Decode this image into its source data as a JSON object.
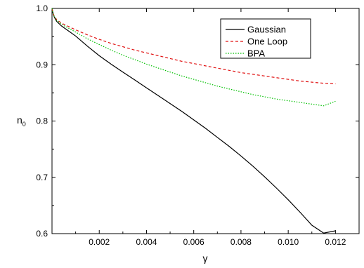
{
  "chart_data": {
    "type": "line",
    "title": "",
    "xlabel": "γ",
    "ylabel": "n",
    "ylabel_subscript": "0",
    "xlim": [
      0,
      0.013
    ],
    "ylim": [
      0.6,
      1.0
    ],
    "xticks": [
      0.002,
      0.004,
      0.006,
      0.008,
      0.01,
      0.012
    ],
    "xtick_labels": [
      "0.002",
      "0.004",
      "0.006",
      "0.008",
      "0.010",
      "0.012"
    ],
    "yticks": [
      0.6,
      0.7,
      0.8,
      0.9,
      1.0
    ],
    "ytick_labels": [
      "0.6",
      "0.7",
      "0.8",
      "0.9",
      "1.0"
    ],
    "grid": false,
    "legend_position": "top-right",
    "series": [
      {
        "name": "Gaussian",
        "color": "#000000",
        "dash": "solid",
        "x": [
          0,
          5e-05,
          0.0001,
          0.0002,
          0.0004,
          0.0007,
          0.001,
          0.0015,
          0.002,
          0.0025,
          0.003,
          0.0035,
          0.004,
          0.0045,
          0.005,
          0.0055,
          0.006,
          0.0065,
          0.007,
          0.0075,
          0.008,
          0.0085,
          0.009,
          0.0095,
          0.01,
          0.0105,
          0.011,
          0.0115,
          0.012
        ],
        "y": [
          1.0,
          0.99,
          0.984,
          0.977,
          0.969,
          0.96,
          0.951,
          0.933,
          0.916,
          0.901,
          0.887,
          0.873,
          0.859,
          0.845,
          0.831,
          0.817,
          0.802,
          0.787,
          0.771,
          0.755,
          0.738,
          0.72,
          0.701,
          0.681,
          0.66,
          0.638,
          0.615,
          0.601,
          0.605
        ]
      },
      {
        "name": "One Loop",
        "color": "#e01010",
        "dash": "dashed",
        "x": [
          0,
          5e-05,
          0.0001,
          0.0002,
          0.0004,
          0.0007,
          0.001,
          0.0015,
          0.002,
          0.0025,
          0.003,
          0.0035,
          0.004,
          0.0045,
          0.005,
          0.0055,
          0.006,
          0.0065,
          0.007,
          0.0075,
          0.008,
          0.0085,
          0.009,
          0.0095,
          0.01,
          0.0105,
          0.011,
          0.0115,
          0.012
        ],
        "y": [
          1.0,
          0.991,
          0.986,
          0.98,
          0.974,
          0.968,
          0.962,
          0.953,
          0.945,
          0.938,
          0.932,
          0.926,
          0.921,
          0.916,
          0.911,
          0.906,
          0.902,
          0.898,
          0.894,
          0.89,
          0.886,
          0.883,
          0.88,
          0.877,
          0.874,
          0.871,
          0.869,
          0.867,
          0.866
        ]
      },
      {
        "name": "BPA",
        "color": "#00c000",
        "dash": "dotted",
        "x": [
          0,
          5e-05,
          0.0001,
          0.0002,
          0.0004,
          0.0007,
          0.001,
          0.0015,
          0.002,
          0.0025,
          0.003,
          0.0035,
          0.004,
          0.0045,
          0.005,
          0.0055,
          0.006,
          0.0065,
          0.007,
          0.0075,
          0.008,
          0.0085,
          0.009,
          0.0095,
          0.01,
          0.0105,
          0.011,
          0.0115,
          0.012
        ],
        "y": [
          1.0,
          0.99,
          0.985,
          0.979,
          0.972,
          0.965,
          0.958,
          0.946,
          0.936,
          0.926,
          0.917,
          0.909,
          0.901,
          0.894,
          0.887,
          0.88,
          0.874,
          0.868,
          0.862,
          0.857,
          0.852,
          0.847,
          0.843,
          0.839,
          0.836,
          0.833,
          0.83,
          0.827,
          0.835
        ]
      }
    ]
  }
}
